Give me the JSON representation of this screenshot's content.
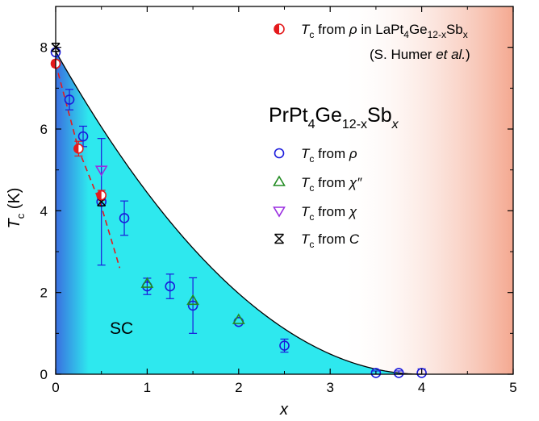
{
  "chart_data": {
    "type": "scatter",
    "title": "",
    "xlabel": "x",
    "ylabel": "Tc (K)",
    "ylabel_main": "T",
    "ylabel_sub": "c",
    "ylabel_unit": " (K)",
    "xlim": [
      0,
      5
    ],
    "ylim": [
      0,
      9
    ],
    "xticks": [
      "0",
      "1",
      "2",
      "3",
      "4",
      "5"
    ],
    "yticks": [
      "0",
      "2",
      "4",
      "6",
      "8"
    ],
    "xtick_values": [
      0,
      1,
      2,
      3,
      4,
      5
    ],
    "ytick_values": [
      0,
      2,
      4,
      6,
      8
    ],
    "region_label": "SC",
    "compound_label": {
      "a": "PrPt",
      "b": "4",
      "c": "Ge",
      "d": "12-x",
      "e": "Sb",
      "f": "x"
    },
    "reference_legend": {
      "line1": {
        "pre": "T",
        "sub": "c",
        "mid": " from ",
        "rho": "ρ",
        "mid2": " in LaPt",
        "s1": "4",
        "ge": "Ge",
        "s2": "12-x",
        "sb": "Sb",
        "s3": "x"
      },
      "line2": {
        "a": "(S. Humer ",
        "b": "et al.",
        "c": ")"
      }
    },
    "series_legend": [
      {
        "pre": "T",
        "sub": "c",
        "mid": " from ",
        "qty": "ρ"
      },
      {
        "pre": "T",
        "sub": "c",
        "mid": " from ",
        "qty": "χ″"
      },
      {
        "pre": "T",
        "sub": "c",
        "mid": " from ",
        "qty": "χ"
      },
      {
        "pre": "T",
        "sub": "c",
        "mid": " from ",
        "qty": "C"
      }
    ],
    "phase_boundary": {
      "formula": "Tc = 7.9*(1 - x/4.0)^2"
    },
    "series": [
      {
        "name": "Tc from ρ",
        "marker": "circle",
        "color": "#1a1adc",
        "points": [
          {
            "x": 0,
            "y": 7.88,
            "err": 0
          },
          {
            "x": 0.15,
            "y": 6.72,
            "err": 0.25
          },
          {
            "x": 0.3,
            "y": 5.82,
            "err": 0.25
          },
          {
            "x": 0.5,
            "y": 4.22,
            "err": 1.55
          },
          {
            "x": 0.75,
            "y": 3.82,
            "err": 0.42
          },
          {
            "x": 1.0,
            "y": 2.15,
            "err": 0.2
          },
          {
            "x": 1.25,
            "y": 2.15,
            "err": 0.3
          },
          {
            "x": 1.5,
            "y": 1.68,
            "err": 0.68
          },
          {
            "x": 2.0,
            "y": 1.28,
            "err": 0
          },
          {
            "x": 2.5,
            "y": 0.7,
            "err": 0.16
          },
          {
            "x": 3.5,
            "y": 0.03,
            "err": 0.05
          },
          {
            "x": 3.75,
            "y": 0.03,
            "err": 0.05
          },
          {
            "x": 4.0,
            "y": 0.03,
            "err": 0.1
          }
        ]
      },
      {
        "name": "Tc from χ″",
        "marker": "triangle-up",
        "color": "#228b22",
        "points": [
          {
            "x": 1.0,
            "y": 2.22
          },
          {
            "x": 1.5,
            "y": 1.8
          },
          {
            "x": 2.0,
            "y": 1.33
          }
        ]
      },
      {
        "name": "Tc from χ",
        "marker": "triangle-down",
        "color": "#9a2ee0",
        "points": [
          {
            "x": 0.5,
            "y": 5.0
          }
        ]
      },
      {
        "name": "Tc from C",
        "marker": "crossed-x",
        "color": "#000000",
        "points": [
          {
            "x": 0,
            "y": 8.0
          },
          {
            "x": 0.5,
            "y": 4.22
          }
        ]
      },
      {
        "name": "Tc from ρ in LaPt4Ge12-xSbx",
        "marker": "half-circle",
        "color": "#e41a1c",
        "points": [
          {
            "x": 0,
            "y": 7.6,
            "err": 0.08
          },
          {
            "x": 0.25,
            "y": 5.52,
            "err": 0.18
          },
          {
            "x": 0.5,
            "y": 4.38,
            "err": 0.12
          }
        ]
      }
    ],
    "reference_fit": {
      "x": [
        0,
        0.25,
        0.5,
        0.7
      ],
      "y": [
        7.6,
        5.5,
        4.1,
        2.6
      ],
      "style": "dashed",
      "color": "#e41a1c"
    },
    "gradients": {
      "left": "#3a6fe0",
      "fill": "#2ee8ee",
      "right": "#f4a890"
    },
    "grid": false
  }
}
